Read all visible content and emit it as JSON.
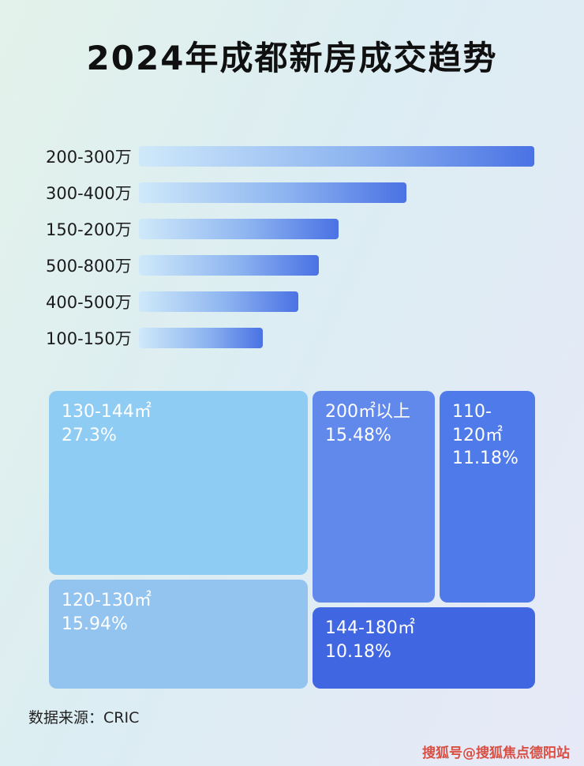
{
  "title": "2024年成都新房成交趋势",
  "footer": {
    "source_label": "数据来源：CRIC"
  },
  "watermark": "搜狐号@搜狐焦点德阳站",
  "colors": {
    "bar_gradient_start": "#cfe9fa",
    "bar_gradient_end": "#4a72e4",
    "treemap_light_1": "#8fccf3",
    "treemap_light_2": "#93c4ef",
    "treemap_mid_blue": "#6189ec",
    "treemap_blue": "#4f7ae9",
    "treemap_dark_blue": "#4166e2",
    "watermark_red": "#d94f43"
  },
  "chart_data": [
    {
      "type": "bar",
      "orientation": "horizontal",
      "title": "2024年成都新房成交趋势",
      "categories": [
        "200-300万",
        "300-400万",
        "150-200万",
        "500-800万",
        "400-500万",
        "100-150万"
      ],
      "values": [
        99,
        67,
        50,
        45,
        40,
        31
      ],
      "value_note": "relative bar lengths in % of track, estimated from pixels (no numeric labels shown)",
      "xlabel": "",
      "ylabel": "",
      "grid": false,
      "legend": false
    },
    {
      "type": "treemap",
      "items": [
        {
          "label": "130-144㎡",
          "value": 27.3,
          "display": "27.3%"
        },
        {
          "label": "120-130㎡",
          "value": 15.94,
          "display": "15.94%"
        },
        {
          "label": "200㎡以上",
          "value": 15.48,
          "display": "15.48%"
        },
        {
          "label": "110-120㎡",
          "value": 11.18,
          "display": "11.18%"
        },
        {
          "label": "144-180㎡",
          "value": 10.18,
          "display": "10.18%"
        }
      ]
    }
  ]
}
